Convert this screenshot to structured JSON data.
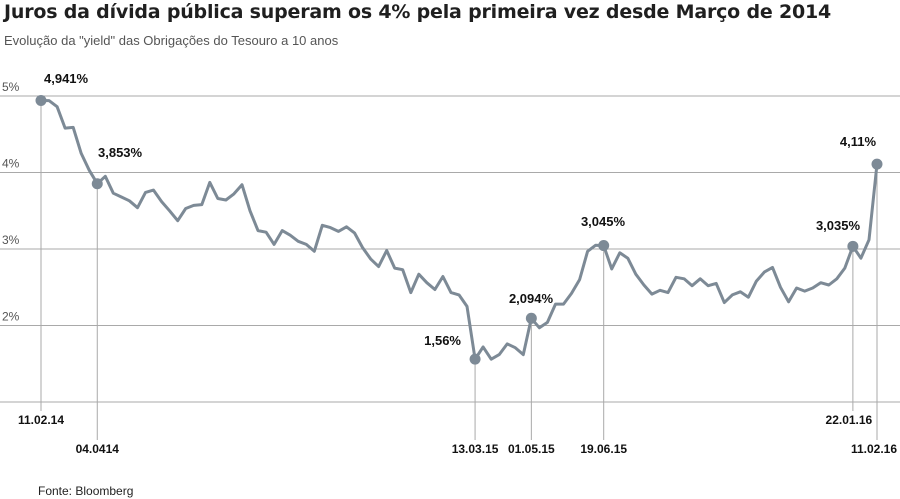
{
  "title": "Juros da dívida pública superam os 4% pela primeira vez desde Março de 2014",
  "subtitle": "Evolução da \"yield\" das Obrigações do Tesouro a 10 anos",
  "source": "Fonte: Bloomberg",
  "colors": {
    "line": "#7d8a96",
    "grid": "#a9a9a9",
    "marker": "#7d8a96",
    "text": "#111111"
  },
  "chart_data": {
    "type": "line",
    "title": "Juros da dívida pública superam os 4% pela primeira vez desde Março de 2014",
    "subtitle": "Evolução da \"yield\" das Obrigações do Tesouro a 10 anos",
    "ylim": [
      1.0,
      5.0
    ],
    "y_ticks": [
      {
        "value": 5,
        "label": "5%"
      },
      {
        "value": 4,
        "label": "4%"
      },
      {
        "value": 3,
        "label": "3%"
      },
      {
        "value": 2,
        "label": "2%"
      }
    ],
    "grid": true,
    "series": [
      {
        "values": [
          4.941,
          4.94,
          4.86,
          4.58,
          4.59,
          4.25,
          4.03,
          3.853,
          3.95,
          3.73,
          3.68,
          3.63,
          3.54,
          3.74,
          3.77,
          3.62,
          3.5,
          3.37,
          3.53,
          3.57,
          3.58,
          3.87,
          3.66,
          3.64,
          3.72,
          3.84,
          3.5,
          3.24,
          3.22,
          3.06,
          3.24,
          3.18,
          3.1,
          3.06,
          2.97,
          3.31,
          3.28,
          3.23,
          3.29,
          3.21,
          3.02,
          2.87,
          2.77,
          2.98,
          2.75,
          2.73,
          2.43,
          2.67,
          2.56,
          2.47,
          2.64,
          2.43,
          2.4,
          2.25,
          1.56,
          1.72,
          1.56,
          1.62,
          1.76,
          1.71,
          1.62,
          2.094,
          1.97,
          2.04,
          2.28,
          2.28,
          2.42,
          2.6,
          2.97,
          3.05,
          3.045,
          2.74,
          2.95,
          2.88,
          2.67,
          2.53,
          2.41,
          2.46,
          2.43,
          2.63,
          2.61,
          2.52,
          2.61,
          2.52,
          2.55,
          2.3,
          2.4,
          2.44,
          2.37,
          2.58,
          2.7,
          2.76,
          2.5,
          2.31,
          2.49,
          2.45,
          2.49,
          2.56,
          2.53,
          2.61,
          2.75,
          3.035,
          2.88,
          3.12,
          4.11
        ]
      }
    ],
    "annotations": [
      {
        "index": 0,
        "label": "4,941%",
        "date": "11.02.14"
      },
      {
        "index": 7,
        "label": "3,853%",
        "date": "04.0414"
      },
      {
        "index": 54,
        "label": "1,56%",
        "date": "13.03.15"
      },
      {
        "index": 61,
        "label": "2,094%",
        "date": "01.05.15"
      },
      {
        "index": 70,
        "label": "3,045%",
        "date": "19.06.15"
      },
      {
        "index": 101,
        "label": "3,035%",
        "date": "22.01.16"
      },
      {
        "index": 104,
        "label": "4,11%",
        "date": "11.02.16"
      }
    ]
  }
}
